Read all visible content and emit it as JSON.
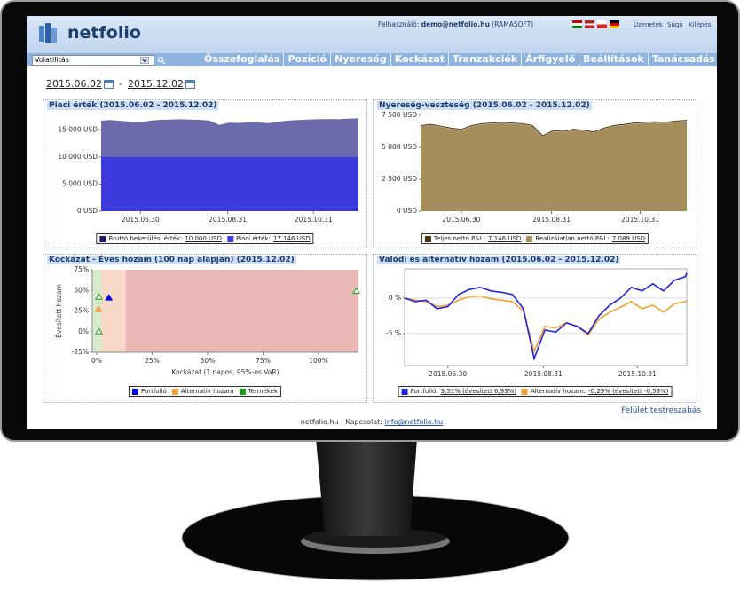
{
  "header": {
    "logo": "netfolio",
    "user_label": "Felhasználó:",
    "user": "demo@netfolio.hu",
    "org": "(RAMASOFT)",
    "links": [
      "Üzenetek",
      "Súgó",
      "Kilépés"
    ]
  },
  "toolbar": {
    "select": "Volatilitás",
    "nav": [
      "Összefoglalás",
      "Pozíció",
      "Nyereség",
      "Kockázat",
      "Tranzakciók",
      "Árfigyelő",
      "Beállítások",
      "Tanácsadás"
    ]
  },
  "date_range": {
    "from": "2015.06.02",
    "separator": "-",
    "to": "2015.12.02"
  },
  "chart_data": [
    {
      "type": "area",
      "title": "Piaci érték (2015.06.02 - 2015.12.02)",
      "x": [
        "2015.06.02",
        "2015.06.09",
        "2015.06.16",
        "2015.06.23",
        "2015.06.30",
        "2015.07.07",
        "2015.07.14",
        "2015.07.21",
        "2015.07.28",
        "2015.08.04",
        "2015.08.11",
        "2015.08.18",
        "2015.08.25",
        "2015.09.01",
        "2015.09.08",
        "2015.09.15",
        "2015.09.22",
        "2015.09.29",
        "2015.10.06",
        "2015.10.13",
        "2015.10.20",
        "2015.10.27",
        "2015.11.03",
        "2015.11.10",
        "2015.11.17",
        "2015.11.24",
        "2015.12.01",
        "2015.12.02"
      ],
      "xlim": [
        "2015.06.02",
        "2015.12.02"
      ],
      "xticks": [
        "2015.06.30",
        "2015.08.31",
        "2015.10.31"
      ],
      "ylim": [
        0,
        17500
      ],
      "yticks": [
        {
          "value": 0,
          "label": "0 USD"
        },
        {
          "value": 5000,
          "label": "5 000 USD"
        },
        {
          "value": 10000,
          "label": "10 000 USD"
        },
        {
          "value": 15000,
          "label": "15 000 USD"
        }
      ],
      "series": [
        {
          "name": "Bruttó bekerülési érték:",
          "color": "#1c1c6e",
          "fill": "#3b3bdc",
          "legend_label": "10 000 USD",
          "values": [
            10000,
            10000,
            10000,
            10000,
            10000,
            10000,
            10000,
            10000,
            10000,
            10000,
            10000,
            10000,
            10000,
            10000,
            10000,
            10000,
            10000,
            10000,
            10000,
            10000,
            10000,
            10000,
            10000,
            10000,
            10000,
            10000,
            10000,
            10000
          ]
        },
        {
          "name": "Piaci érték:",
          "color": "#3a3ae0",
          "fill": "#6b6bab",
          "legend_label": "17 146 USD",
          "values": [
            16700,
            16800,
            16650,
            16500,
            16400,
            16700,
            16850,
            16900,
            16950,
            16900,
            16850,
            16700,
            15900,
            16300,
            16250,
            16400,
            16350,
            16200,
            16500,
            16700,
            16800,
            16900,
            16950,
            17000,
            16950,
            17050,
            17100,
            17146
          ]
        }
      ]
    },
    {
      "type": "area",
      "title": "Nyereség-veszteség (2015.06.02 - 2015.12.02)",
      "x": [
        "2015.06.02",
        "2015.06.09",
        "2015.06.16",
        "2015.06.23",
        "2015.06.30",
        "2015.07.07",
        "2015.07.14",
        "2015.07.21",
        "2015.07.28",
        "2015.08.04",
        "2015.08.11",
        "2015.08.18",
        "2015.08.25",
        "2015.09.01",
        "2015.09.08",
        "2015.09.15",
        "2015.09.22",
        "2015.09.29",
        "2015.10.06",
        "2015.10.13",
        "2015.10.20",
        "2015.10.27",
        "2015.11.03",
        "2015.11.10",
        "2015.11.17",
        "2015.11.24",
        "2015.12.01",
        "2015.12.02"
      ],
      "xlim": [
        "2015.06.02",
        "2015.12.02"
      ],
      "xticks": [
        "2015.06.30",
        "2015.08.31",
        "2015.10.31"
      ],
      "ylim": [
        0,
        7500
      ],
      "yticks": [
        {
          "value": 0,
          "label": "0 USD"
        },
        {
          "value": 2500,
          "label": "2 500 USD"
        },
        {
          "value": 5000,
          "label": "5 000 USD"
        },
        {
          "value": 7500,
          "label": "7 500 USD"
        }
      ],
      "series": [
        {
          "name": "Teljes nettó P&L:",
          "color": "#4a3515",
          "legend_label": "7 146 USD",
          "values": [
            6700,
            6800,
            6650,
            6500,
            6400,
            6700,
            6850,
            6900,
            6950,
            6900,
            6850,
            6700,
            5900,
            6300,
            6250,
            6400,
            6350,
            6200,
            6500,
            6700,
            6800,
            6900,
            6950,
            7000,
            6950,
            7050,
            7100,
            7146
          ]
        },
        {
          "name": "Realizálatlan nettó P&L:",
          "color": "#a8905a",
          "fill": "#a58e5c",
          "legend_label": "7 089 USD",
          "values": [
            6643,
            6743,
            6593,
            6443,
            6343,
            6643,
            6793,
            6843,
            6893,
            6843,
            6793,
            6643,
            5843,
            6243,
            6193,
            6343,
            6293,
            6143,
            6443,
            6643,
            6743,
            6843,
            6893,
            6943,
            6893,
            6993,
            7043,
            7089
          ]
        }
      ]
    },
    {
      "type": "scatter",
      "title": "Kockázat - Éves hozam (100 nap alapján) (2015.12.02)",
      "xlabel": "Kockázat (1 napos, 95%-os VaR)",
      "ylabel": "Évesített hozam",
      "xlim": [
        -2,
        118
      ],
      "xticks": [
        {
          "value": 0,
          "label": "0%"
        },
        {
          "value": 25,
          "label": "25%"
        },
        {
          "value": 50,
          "label": "50%"
        },
        {
          "value": 75,
          "label": "75%"
        },
        {
          "value": 100,
          "label": "100%"
        }
      ],
      "ylim": [
        -25,
        75
      ],
      "yticks": [
        {
          "value": -25,
          "label": "-25%"
        },
        {
          "value": 0,
          "label": "0%"
        },
        {
          "value": 25,
          "label": "25%"
        },
        {
          "value": 50,
          "label": "50%"
        },
        {
          "value": 75,
          "label": "75%"
        }
      ],
      "bands": [
        {
          "from": -2,
          "to": 2,
          "color": "#d5ebcd"
        },
        {
          "from": 2,
          "to": 13,
          "color": "#f8d8c6"
        },
        {
          "from": 13,
          "to": 118,
          "color": "#e9b9b6"
        }
      ],
      "series": [
        {
          "name": "Portfolió",
          "color": "#0000e0",
          "x": [
            5.5
          ],
          "values": [
            41
          ]
        },
        {
          "name": "Alternatív hozam",
          "color": "#f0a040",
          "x": [
            0.8
          ],
          "values": [
            27
          ]
        },
        {
          "name": "Termékek",
          "color": "#1a9a1a",
          "hollow": true,
          "x": [
            1,
            1,
            117
          ],
          "values": [
            42,
            0,
            49
          ]
        }
      ]
    },
    {
      "type": "line",
      "title": "Valódi és alternatív hozam (2015.06.02 - 2015.12.02)",
      "x": [
        "2015.06.02",
        "2015.06.09",
        "2015.06.16",
        "2015.06.23",
        "2015.06.30",
        "2015.07.07",
        "2015.07.14",
        "2015.07.21",
        "2015.07.28",
        "2015.08.04",
        "2015.08.11",
        "2015.08.18",
        "2015.08.25",
        "2015.09.01",
        "2015.09.08",
        "2015.09.15",
        "2015.09.22",
        "2015.09.29",
        "2015.10.06",
        "2015.10.13",
        "2015.10.20",
        "2015.10.27",
        "2015.11.03",
        "2015.11.10",
        "2015.11.17",
        "2015.11.24",
        "2015.12.01",
        "2015.12.02"
      ],
      "xlim": [
        "2015.06.02",
        "2015.12.02"
      ],
      "xticks": [
        "2015.06.30",
        "2015.08.31",
        "2015.10.31"
      ],
      "ylim": [
        -9.5,
        4.1
      ],
      "yticks": [
        {
          "value": 0,
          "label": "0 %"
        },
        {
          "value": -5,
          "label": "-5 %"
        }
      ],
      "grid": true,
      "series": [
        {
          "name": "Portfolió:",
          "color": "#2222dd",
          "legend_label": "3,51% (évesített 6,93%)",
          "values": [
            0,
            -0.5,
            -0.3,
            -1.5,
            -1.2,
            0.5,
            1.2,
            1.5,
            1.0,
            0.8,
            0.5,
            -1.5,
            -8.5,
            -4.5,
            -4.8,
            -3.5,
            -4.0,
            -5.0,
            -2.5,
            -1.0,
            0.0,
            1.5,
            1.0,
            2.0,
            1.0,
            2.5,
            3.0,
            3.51
          ]
        },
        {
          "name": "Alternatív hozam:",
          "color": "#f0a030",
          "legend_label": "-0,29% (évesített -0,58%)",
          "values": [
            0,
            -0.3,
            -0.5,
            -1.2,
            -1.0,
            -0.3,
            0.2,
            0.3,
            -0.1,
            -0.3,
            -0.5,
            -1.8,
            -7.5,
            -4.0,
            -4.2,
            -3.5,
            -4.0,
            -5.2,
            -3.0,
            -2.0,
            -1.3,
            -0.5,
            -1.5,
            -1.0,
            -2.0,
            -0.8,
            -0.5,
            -0.29
          ]
        }
      ]
    }
  ],
  "customize_link": "Felület testreszabás",
  "footer": {
    "text": "netfolio.hu - Kapcsolat:",
    "email": "info@netfolio.hu"
  }
}
